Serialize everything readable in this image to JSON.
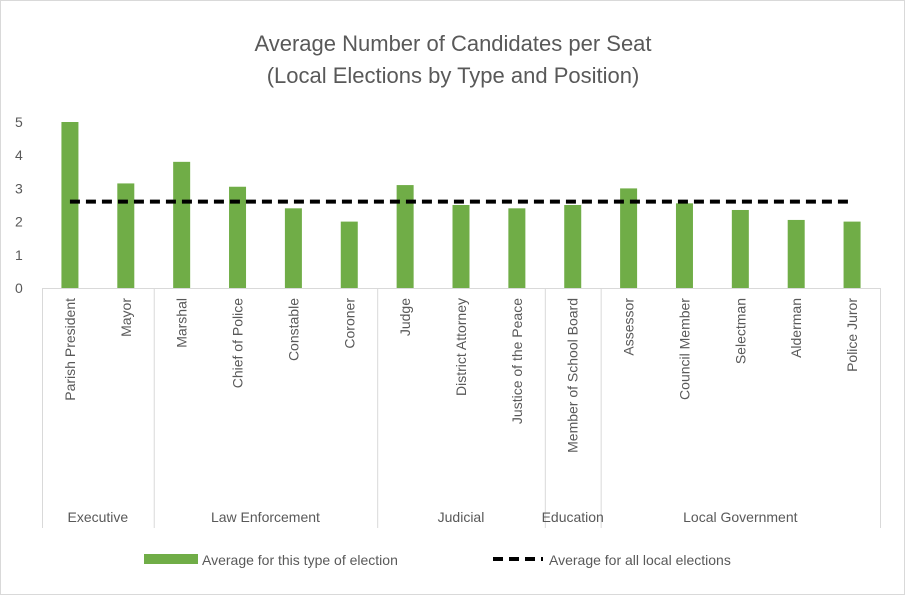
{
  "chart_data": {
    "type": "bar",
    "title": [
      "Average Number of Candidates per Seat",
      "(Local Elections by Type and Position)"
    ],
    "categories": [
      "Parish President",
      "Mayor",
      "Marshal",
      "Chief of Police",
      "Constable",
      "Coroner",
      "Judge",
      "District Attorney",
      "Justice of the Peace",
      "Member of School Board",
      "Assessor",
      "Council Member",
      "Selectman",
      "Alderman",
      "Police Juror"
    ],
    "groups": [
      {
        "name": "Executive",
        "count": 2
      },
      {
        "name": "Law Enforcement",
        "count": 4
      },
      {
        "name": "Judicial",
        "count": 3
      },
      {
        "name": "Education",
        "count": 1
      },
      {
        "name": "Local Government",
        "count": 5
      }
    ],
    "series": [
      {
        "name": "Average for this type of election",
        "type": "bar",
        "color": "#70ad47",
        "values": [
          5.0,
          3.15,
          3.8,
          3.05,
          2.4,
          2.0,
          3.1,
          2.5,
          2.4,
          2.5,
          3.0,
          2.55,
          2.35,
          2.05,
          2.0
        ]
      },
      {
        "name": "Average for all local elections",
        "type": "line",
        "style": "dashed",
        "color": "#000000",
        "value": 2.6
      }
    ],
    "yticks": [
      "0",
      "1",
      "2",
      "3",
      "4",
      "5"
    ],
    "ylim": [
      0,
      5
    ],
    "grid": false,
    "legend_position": "bottom"
  }
}
